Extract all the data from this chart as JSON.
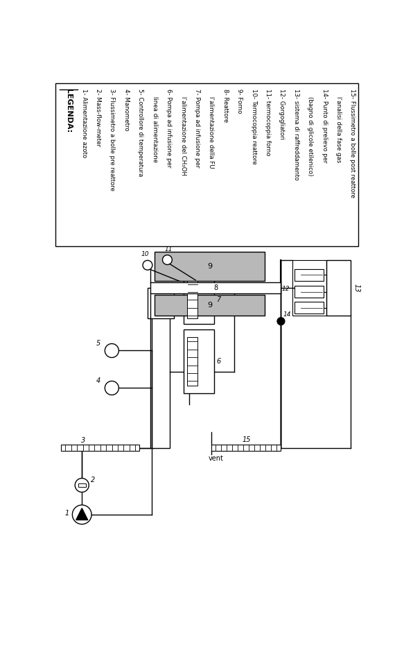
{
  "figsize": [
    5.83,
    9.4
  ],
  "dpi": 100,
  "bg_color": "#ffffff",
  "gray_fill": "#b8b8b8",
  "legend_items": [
    "1- Alimentazione azoto",
    "2- Mass-flow-meter",
    "3- Flussimetro a bolle pre reattore",
    "4- Manometro",
    "5- Controllore di temperatura",
    "    linea di alimentazione",
    "6- Pompa ad infusione per",
    "    l’alimentazione del CH₃OH",
    "7- Pompa ad infusione per",
    "    l’alimentazione della FU",
    "8- Reattore",
    "9- Forno",
    "10- Termocoppia reattore",
    "11- termocoppia forno",
    "12- Gorgogliatori",
    "13- sistema di raffreddamento",
    "    (bagno di glicole etilenico)",
    "14- Punto di prelievo per",
    "    l’analisi della fase gas",
    "15- Flussimetro a bolle post reattore"
  ]
}
